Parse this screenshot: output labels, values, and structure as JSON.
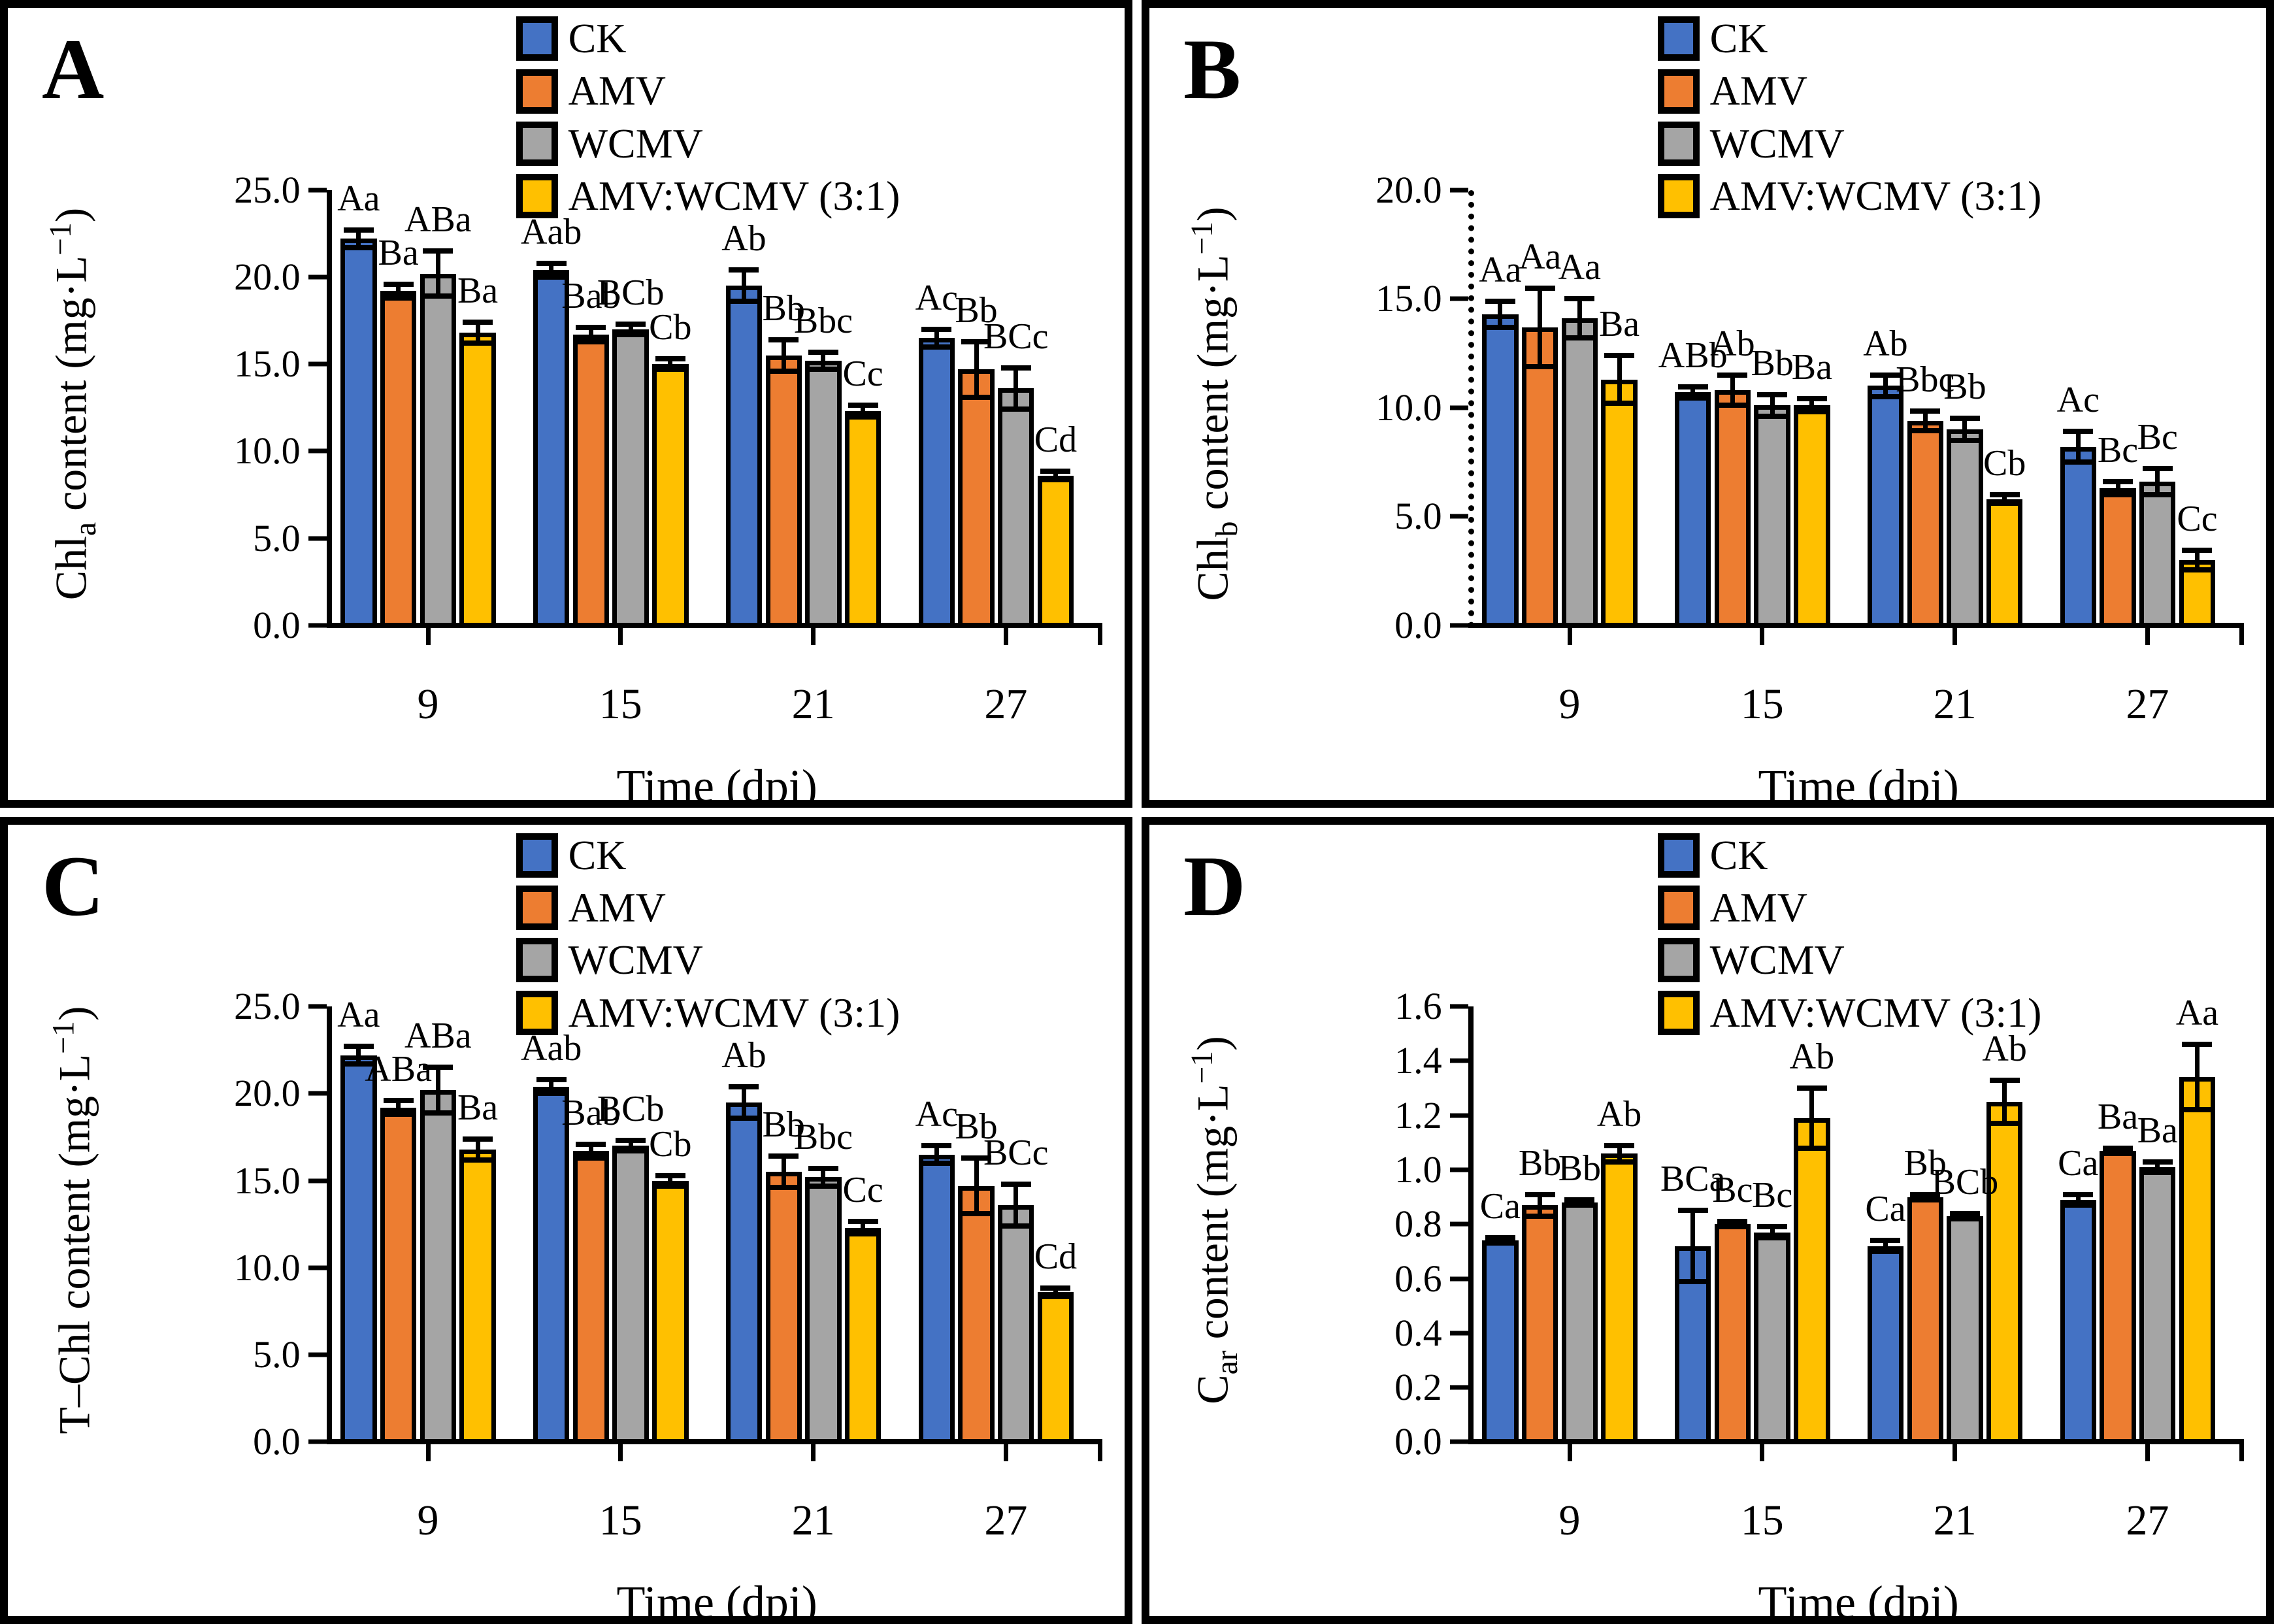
{
  "figure_type": "four-panel grouped bar chart of pigment content",
  "chart_data": [
    {
      "type": "bar",
      "panel": "A",
      "ylabel": {
        "main1": "Chl",
        "sub": "a",
        "main2": " content (mg·L",
        "sup": "−1",
        "main3": ")"
      },
      "xlabel": "Time (dpi)",
      "ylim": [
        0,
        25
      ],
      "yticks": [
        "0.0",
        "5.0",
        "10.0",
        "15.0",
        "20.0",
        "25.0"
      ],
      "y_axis_style": "solid",
      "grid": false,
      "legend_position": "top-center",
      "categories": [
        "9",
        "15",
        "21",
        "27"
      ],
      "series": [
        {
          "name": "CK",
          "color": "#4472C4",
          "values": [
            22.2,
            20.4,
            19.5,
            16.5
          ],
          "errors": [
            0.5,
            0.4,
            0.9,
            0.5
          ],
          "labels": [
            "Aa",
            "Aab",
            "Ab",
            "Ac"
          ]
        },
        {
          "name": "AMV",
          "color": "#ED7D31",
          "values": [
            19.2,
            16.7,
            15.5,
            14.7
          ],
          "errors": [
            0.4,
            0.4,
            0.9,
            1.6
          ],
          "labels": [
            "Ba",
            "Bab",
            "Bb",
            "Bb"
          ]
        },
        {
          "name": "WCMV",
          "color": "#A5A5A5",
          "values": [
            20.2,
            17.0,
            15.2,
            13.6
          ],
          "errors": [
            1.3,
            0.3,
            0.5,
            1.2
          ],
          "labels": [
            "ABa",
            "BCb",
            "Bbc",
            "BCc"
          ]
        },
        {
          "name": "AMV:WCMV (3:1)",
          "color": "#FFC000",
          "values": [
            16.8,
            15.0,
            12.3,
            8.6
          ],
          "errors": [
            0.6,
            0.3,
            0.35,
            0.25
          ],
          "labels": [
            "Ba",
            "Cb",
            "Cc",
            "Cd"
          ]
        }
      ]
    },
    {
      "type": "bar",
      "panel": "B",
      "ylabel": {
        "main1": "Chl",
        "sub": "b",
        "main2": " content (mg·L",
        "sup": "−1",
        "main3": ")"
      },
      "xlabel": "Time (dpi)",
      "ylim": [
        0,
        20
      ],
      "yticks": [
        "0.0",
        "5.0",
        "10.0",
        "15.0",
        "20.0"
      ],
      "y_axis_style": "dotted",
      "grid": false,
      "legend_position": "top-center",
      "categories": [
        "9",
        "15",
        "21",
        "27"
      ],
      "series": [
        {
          "name": "CK",
          "color": "#4472C4",
          "values": [
            14.3,
            10.7,
            11.0,
            8.2
          ],
          "errors": [
            0.6,
            0.25,
            0.5,
            0.7
          ],
          "labels": [
            "Aa",
            "ABb",
            "Ab",
            "Ac"
          ]
        },
        {
          "name": "AMV",
          "color": "#ED7D31",
          "values": [
            13.7,
            10.8,
            9.4,
            6.3
          ],
          "errors": [
            1.8,
            0.7,
            0.45,
            0.3
          ],
          "labels": [
            "Aa",
            "Ab",
            "Bbc",
            "Bc"
          ]
        },
        {
          "name": "WCMV",
          "color": "#A5A5A5",
          "values": [
            14.1,
            10.1,
            9.0,
            6.6
          ],
          "errors": [
            0.9,
            0.5,
            0.5,
            0.6
          ],
          "labels": [
            "Aa",
            "Bb",
            "Bb",
            "Bc"
          ]
        },
        {
          "name": "AMV:WCMV (3:1)",
          "color": "#FFC000",
          "values": [
            11.3,
            10.1,
            5.8,
            3.0
          ],
          "errors": [
            1.1,
            0.3,
            0.2,
            0.45
          ],
          "labels": [
            "Ba",
            "Ba",
            "Cb",
            "Cc"
          ]
        }
      ]
    },
    {
      "type": "bar",
      "panel": "C",
      "ylabel": {
        "main1": "T–Chl",
        "sub": "",
        "main2": " content (mg·L",
        "sup": "−1",
        "main3": ")"
      },
      "xlabel": "Time (dpi)",
      "ylim": [
        0,
        25
      ],
      "yticks": [
        "0.0",
        "5.0",
        "10.0",
        "15.0",
        "20.0",
        "25.0"
      ],
      "y_axis_style": "solid",
      "grid": false,
      "legend_position": "top-center",
      "categories": [
        "9",
        "15",
        "21",
        "27"
      ],
      "series": [
        {
          "name": "CK",
          "color": "#4472C4",
          "values": [
            22.2,
            20.4,
            19.5,
            16.5
          ],
          "errors": [
            0.5,
            0.4,
            0.9,
            0.5
          ],
          "labels": [
            "Aa",
            "Aab",
            "Ab",
            "Ac"
          ]
        },
        {
          "name": "AMV",
          "color": "#ED7D31",
          "values": [
            19.2,
            16.7,
            15.5,
            14.7
          ],
          "errors": [
            0.4,
            0.4,
            0.9,
            1.6
          ],
          "labels": [
            "ABa",
            "Bab",
            "Bb",
            "Bb"
          ]
        },
        {
          "name": "WCMV",
          "color": "#A5A5A5",
          "values": [
            20.2,
            17.0,
            15.2,
            13.6
          ],
          "errors": [
            1.3,
            0.3,
            0.5,
            1.2
          ],
          "labels": [
            "ABa",
            "BCb",
            "Bbc",
            "BCc"
          ]
        },
        {
          "name": "AMV:WCMV (3:1)",
          "color": "#FFC000",
          "values": [
            16.8,
            15.0,
            12.3,
            8.6
          ],
          "errors": [
            0.6,
            0.3,
            0.35,
            0.25
          ],
          "labels": [
            "Ba",
            "Cb",
            "Cc",
            "Cd"
          ]
        }
      ]
    },
    {
      "type": "bar",
      "panel": "D",
      "ylabel": {
        "main1": "C",
        "sub": "ar",
        "main2": " content (mg·L",
        "sup": "−1",
        "main3": ")"
      },
      "xlabel": "Time (dpi)",
      "ylim": [
        0,
        1.6
      ],
      "yticks": [
        "0.0",
        "0.2",
        "0.4",
        "0.6",
        "0.8",
        "1.0",
        "1.2",
        "1.4",
        "1.6"
      ],
      "y_axis_style": "solid",
      "grid": false,
      "legend_position": "top-center",
      "categories": [
        "9",
        "15",
        "21",
        "27"
      ],
      "series": [
        {
          "name": "CK",
          "color": "#4472C4",
          "values": [
            0.74,
            0.72,
            0.72,
            0.89
          ],
          "errors": [
            0.01,
            0.13,
            0.02,
            0.02
          ],
          "labels": [
            "Ca",
            "BCa",
            "Ca",
            "Ca"
          ]
        },
        {
          "name": "AMV",
          "color": "#ED7D31",
          "values": [
            0.87,
            0.8,
            0.9,
            1.07
          ],
          "errors": [
            0.04,
            0.01,
            0.01,
            0.01
          ],
          "labels": [
            "Bb",
            "Bc",
            "Bb",
            "Ba"
          ]
        },
        {
          "name": "WCMV",
          "color": "#A5A5A5",
          "values": [
            0.88,
            0.77,
            0.83,
            1.01
          ],
          "errors": [
            0.01,
            0.02,
            0.01,
            0.02
          ],
          "labels": [
            "Bb",
            "Bc",
            "BCb",
            "Ba"
          ]
        },
        {
          "name": "AMV:WCMV (3:1)",
          "color": "#FFC000",
          "values": [
            1.06,
            1.19,
            1.25,
            1.34
          ],
          "errors": [
            0.03,
            0.11,
            0.08,
            0.12
          ],
          "labels": [
            "Ab",
            "Ab",
            "Ab",
            "Aa"
          ]
        }
      ]
    }
  ]
}
